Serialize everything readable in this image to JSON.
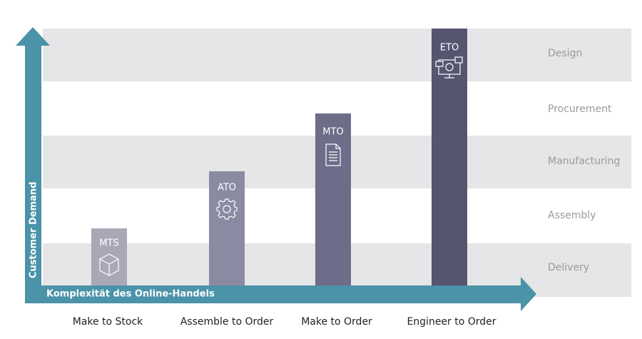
{
  "levels": [
    "Design",
    "Procurement",
    "Manufacturing",
    "Assembly",
    "Delivery"
  ],
  "axes": {
    "vertical": "Customer Demand",
    "horizontal": "Komplexität des Online-Handels"
  },
  "strategies": [
    {
      "short": "MTS",
      "name": "Make to Stock"
    },
    {
      "short": "ATO",
      "name": "Assemble to Order"
    },
    {
      "short": "MTO",
      "name": "Make to Order"
    },
    {
      "short": "ETO",
      "name": "Engineer to Order"
    }
  ]
}
